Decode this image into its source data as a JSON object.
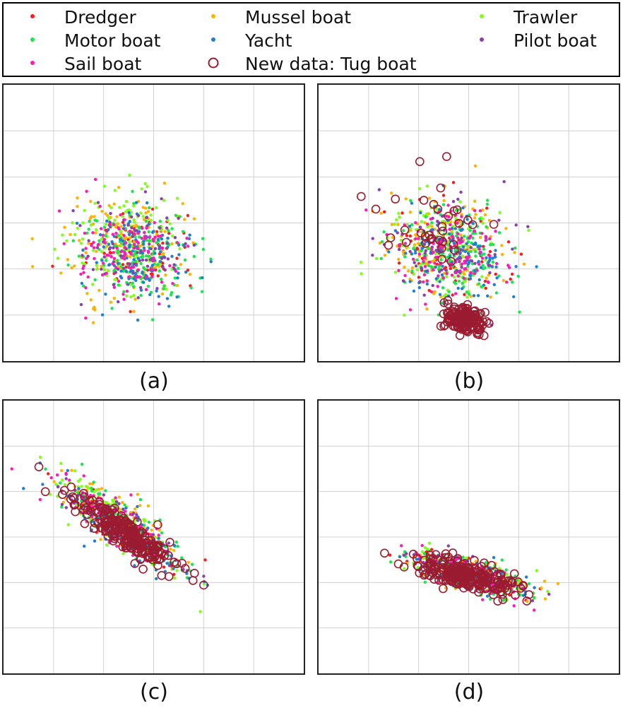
{
  "legend": {
    "items": [
      {
        "label": "Dredger",
        "color": "#ff1a1a",
        "marker": "dot"
      },
      {
        "label": "Mussel boat",
        "color": "#ffb300",
        "marker": "dot"
      },
      {
        "label": "Trawler",
        "color": "#7fff1a",
        "marker": "dot"
      },
      {
        "label": "Motor boat",
        "color": "#19e64d",
        "marker": "dot"
      },
      {
        "label": "Yacht",
        "color": "#1f7fd1",
        "marker": "dot"
      },
      {
        "label": "Pilot boat",
        "color": "#8a3fb0",
        "marker": "dot"
      },
      {
        "label": "Sail boat",
        "color": "#ff1ab3",
        "marker": "dot"
      },
      {
        "label": "New data: Tug boat",
        "color": "#9b1b30",
        "marker": "circle"
      }
    ]
  },
  "captions": {
    "a": "(a)",
    "b": "(b)",
    "c": "(c)",
    "d": "(d)"
  },
  "chart_data": [
    {
      "panel": "a",
      "type": "scatter",
      "grid": true,
      "tick_labels": false,
      "xlim": [
        0,
        6
      ],
      "ylim": [
        0,
        6
      ],
      "clusters": [
        {
          "label": "Dredger",
          "center": [
            2.7,
            2.4
          ],
          "spread": [
            1.0,
            0.9
          ],
          "tilt": -40,
          "count": 70
        },
        {
          "label": "Mussel boat",
          "center": [
            2.5,
            2.5
          ],
          "spread": [
            1.1,
            1.0
          ],
          "tilt": -40,
          "count": 140
        },
        {
          "label": "Trawler",
          "center": [
            2.4,
            2.6
          ],
          "spread": [
            1.1,
            1.0
          ],
          "tilt": -40,
          "count": 130
        },
        {
          "label": "Motor boat",
          "center": [
            2.8,
            2.3
          ],
          "spread": [
            1.0,
            0.9
          ],
          "tilt": -40,
          "count": 140
        },
        {
          "label": "Yacht",
          "center": [
            2.7,
            2.3
          ],
          "spread": [
            1.0,
            0.9
          ],
          "tilt": -40,
          "count": 120
        },
        {
          "label": "Pilot boat",
          "center": [
            2.6,
            2.5
          ],
          "spread": [
            1.0,
            1.0
          ],
          "tilt": -40,
          "count": 80
        },
        {
          "label": "Sail boat",
          "center": [
            2.6,
            2.3
          ],
          "spread": [
            1.0,
            0.9
          ],
          "tilt": -40,
          "count": 110
        }
      ]
    },
    {
      "panel": "b",
      "type": "scatter",
      "grid": true,
      "tick_labels": false,
      "xlim": [
        0,
        6
      ],
      "ylim": [
        0,
        6
      ],
      "clusters": [
        {
          "label": "Dredger",
          "center": [
            2.7,
            2.4
          ],
          "spread": [
            1.0,
            0.9
          ],
          "tilt": -40,
          "count": 70
        },
        {
          "label": "Mussel boat",
          "center": [
            2.5,
            2.5
          ],
          "spread": [
            1.1,
            1.0
          ],
          "tilt": -40,
          "count": 140
        },
        {
          "label": "Trawler",
          "center": [
            2.4,
            2.6
          ],
          "spread": [
            1.1,
            1.0
          ],
          "tilt": -40,
          "count": 130
        },
        {
          "label": "Motor boat",
          "center": [
            2.8,
            2.3
          ],
          "spread": [
            1.0,
            0.9
          ],
          "tilt": -40,
          "count": 140
        },
        {
          "label": "Yacht",
          "center": [
            2.7,
            2.3
          ],
          "spread": [
            1.0,
            0.9
          ],
          "tilt": -40,
          "count": 120
        },
        {
          "label": "Pilot boat",
          "center": [
            2.6,
            2.5
          ],
          "spread": [
            1.0,
            1.0
          ],
          "tilt": -40,
          "count": 80
        },
        {
          "label": "Sail boat",
          "center": [
            2.6,
            2.3
          ],
          "spread": [
            1.0,
            0.9
          ],
          "tilt": -40,
          "count": 110
        },
        {
          "label": "New data: Tug boat",
          "center": [
            2.9,
            0.9
          ],
          "spread": [
            0.35,
            0.25
          ],
          "tilt": -15,
          "count": 160
        },
        {
          "label": "New data: Tug boat",
          "center": [
            2.2,
            2.9
          ],
          "spread": [
            1.0,
            0.9
          ],
          "tilt": -40,
          "count": 35
        }
      ]
    },
    {
      "panel": "c",
      "type": "scatter",
      "grid": true,
      "tick_labels": false,
      "xlim": [
        0,
        6
      ],
      "ylim": [
        0,
        6
      ],
      "clusters": [
        {
          "label": "Dredger",
          "center": [
            2.4,
            3.2
          ],
          "spread": [
            1.3,
            0.35
          ],
          "tilt": -38,
          "count": 60
        },
        {
          "label": "Mussel boat",
          "center": [
            2.3,
            3.4
          ],
          "spread": [
            1.3,
            0.4
          ],
          "tilt": -38,
          "count": 130
        },
        {
          "label": "Trawler",
          "center": [
            2.3,
            3.3
          ],
          "spread": [
            1.4,
            0.4
          ],
          "tilt": -38,
          "count": 120
        },
        {
          "label": "Motor boat",
          "center": [
            2.4,
            3.2
          ],
          "spread": [
            1.4,
            0.4
          ],
          "tilt": -38,
          "count": 130
        },
        {
          "label": "Yacht",
          "center": [
            2.4,
            3.1
          ],
          "spread": [
            1.4,
            0.4
          ],
          "tilt": -38,
          "count": 110
        },
        {
          "label": "Pilot boat",
          "center": [
            2.3,
            3.3
          ],
          "spread": [
            1.3,
            0.35
          ],
          "tilt": -38,
          "count": 70
        },
        {
          "label": "Sail boat",
          "center": [
            2.3,
            3.3
          ],
          "spread": [
            1.3,
            0.35
          ],
          "tilt": -38,
          "count": 110
        },
        {
          "label": "New data: Tug boat",
          "center": [
            2.4,
            3.1
          ],
          "spread": [
            1.2,
            0.3
          ],
          "tilt": -38,
          "count": 220
        }
      ]
    },
    {
      "panel": "d",
      "type": "scatter",
      "grid": true,
      "tick_labels": false,
      "xlim": [
        0,
        6
      ],
      "ylim": [
        0,
        6
      ],
      "clusters": [
        {
          "label": "Dredger",
          "center": [
            3.0,
            2.2
          ],
          "spread": [
            1.1,
            0.3
          ],
          "tilt": -17,
          "count": 60
        },
        {
          "label": "Mussel boat",
          "center": [
            3.0,
            2.2
          ],
          "spread": [
            1.1,
            0.3
          ],
          "tilt": -17,
          "count": 120
        },
        {
          "label": "Trawler",
          "center": [
            3.0,
            2.2
          ],
          "spread": [
            1.1,
            0.3
          ],
          "tilt": -17,
          "count": 110
        },
        {
          "label": "Motor boat",
          "center": [
            3.0,
            2.2
          ],
          "spread": [
            1.1,
            0.3
          ],
          "tilt": -17,
          "count": 120
        },
        {
          "label": "Yacht",
          "center": [
            3.0,
            2.2
          ],
          "spread": [
            1.1,
            0.3
          ],
          "tilt": -17,
          "count": 100
        },
        {
          "label": "Pilot boat",
          "center": [
            3.0,
            2.2
          ],
          "spread": [
            1.1,
            0.3
          ],
          "tilt": -17,
          "count": 60
        },
        {
          "label": "Sail boat",
          "center": [
            3.0,
            2.2
          ],
          "spread": [
            1.1,
            0.3
          ],
          "tilt": -17,
          "count": 100
        },
        {
          "label": "New data: Tug boat",
          "center": [
            3.0,
            2.15
          ],
          "spread": [
            1.0,
            0.28
          ],
          "tilt": -17,
          "count": 230
        }
      ]
    }
  ]
}
